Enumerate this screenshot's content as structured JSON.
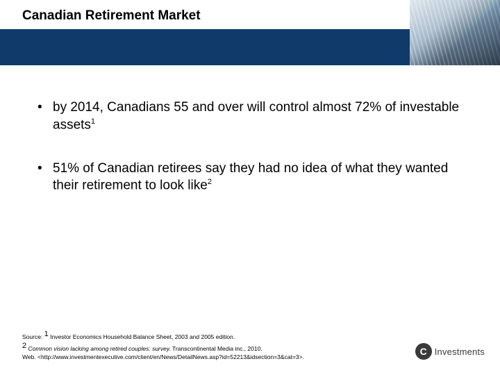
{
  "colors": {
    "band": "#0f3a6a",
    "text": "#000000",
    "logo_dark": "#3a3a3a",
    "background": "#ffffff"
  },
  "title": "Canadian Retirement Market",
  "bullets": [
    {
      "text": "by 2014, Canadians 55 and over will control almost 72% of investable assets",
      "sup": "1"
    },
    {
      "text": "51% of Canadian retirees say they had no idea of what they wanted their retirement to look like",
      "sup": "2"
    }
  ],
  "source": {
    "line1_prefix": "Source: ",
    "line1_sup": "1",
    "line1_rest": " Investor Economics Household Balance Sheet, 2003 and 2005 edition.",
    "line2_sup": "2",
    "line2_italic": " Common vision lacking among retired couples: survey.",
    "line2_rest": " Transcontinental Media inc., 2010.",
    "line3": "Web. <http://www.investmentexecutive.com/client/en/News/DetailNews.asp?id=52213&idsection=3&cat=3>."
  },
  "logo": {
    "letter": "C",
    "text": "Investments"
  }
}
